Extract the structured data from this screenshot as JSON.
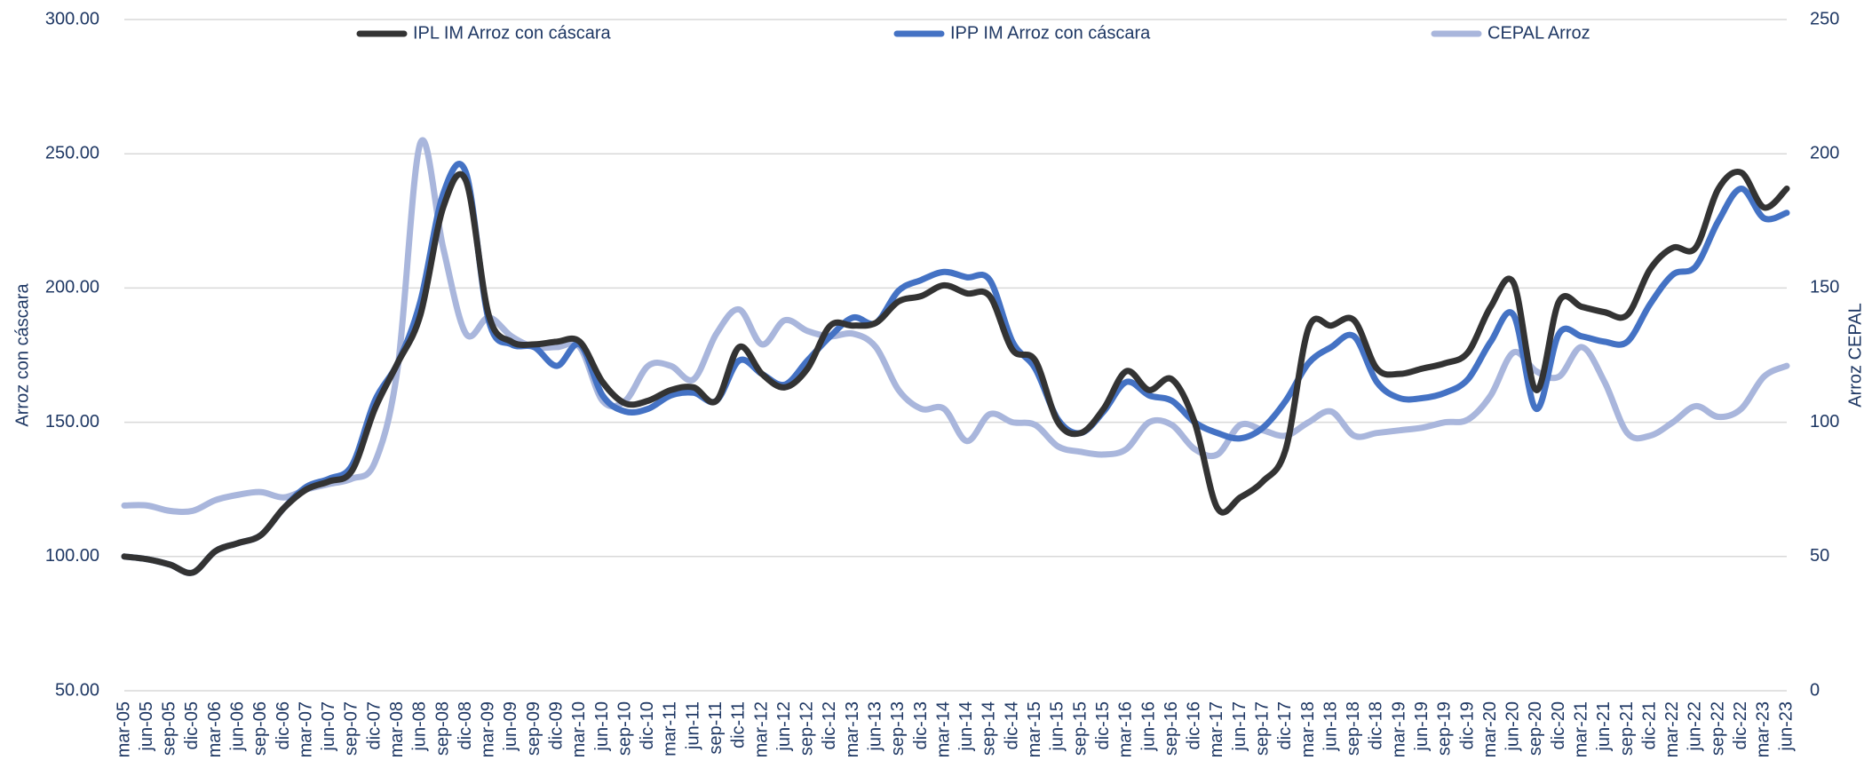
{
  "chart_data": {
    "type": "line",
    "categories": [
      "mar-05",
      "jun-05",
      "sep-05",
      "dic-05",
      "mar-06",
      "jun-06",
      "sep-06",
      "dic-06",
      "mar-07",
      "jun-07",
      "sep-07",
      "dic-07",
      "mar-08",
      "jun-08",
      "sep-08",
      "dic-08",
      "mar-09",
      "jun-09",
      "sep-09",
      "dic-09",
      "mar-10",
      "jun-10",
      "sep-10",
      "dic-10",
      "mar-11",
      "jun-11",
      "sep-11",
      "dic-11",
      "mar-12",
      "jun-12",
      "sep-12",
      "dic-12",
      "mar-13",
      "jun-13",
      "sep-13",
      "dic-13",
      "mar-14",
      "jun-14",
      "sep-14",
      "dic-14",
      "mar-15",
      "jun-15",
      "sep-15",
      "dic-15",
      "mar-16",
      "jun-16",
      "sep-16",
      "dic-16",
      "mar-17",
      "jun-17",
      "sep-17",
      "dic-17",
      "mar-18",
      "jun-18",
      "sep-18",
      "dic-18",
      "mar-19",
      "jun-19",
      "sep-19",
      "dic-19",
      "mar-20",
      "jun-20",
      "sep-20",
      "dic-20",
      "mar-21",
      "jun-21",
      "sep-21",
      "dic-21",
      "mar-22",
      "jun-22",
      "sep-22",
      "dic-22",
      "mar-23",
      "jun-23"
    ],
    "series": [
      {
        "name": "IPL IM Arroz con cáscara",
        "color": "#333333",
        "values": [
          100,
          99,
          97,
          94,
          102,
          105,
          108,
          118,
          125,
          128,
          132,
          155,
          172,
          190,
          230,
          240,
          190,
          180,
          179,
          180,
          180,
          165,
          157,
          158,
          162,
          163,
          158,
          178,
          168,
          163,
          170,
          186,
          186,
          187,
          195,
          197,
          201,
          198,
          197,
          177,
          173,
          150,
          146,
          155,
          169,
          162,
          166,
          150,
          118,
          122,
          128,
          140,
          185,
          186,
          188,
          170,
          168,
          170,
          172,
          176,
          193,
          202,
          162,
          195,
          193,
          191,
          190,
          207,
          215,
          215,
          237,
          243,
          230,
          237
        ]
      },
      {
        "name": "IPP IM Arroz con cáscara",
        "color": "#4472c4",
        "values": [
          100,
          99,
          97,
          94,
          102,
          105,
          108,
          118,
          126,
          129,
          134,
          158,
          172,
          195,
          235,
          243,
          188,
          179,
          178,
          171,
          179,
          160,
          154,
          155,
          160,
          161,
          158,
          173,
          168,
          164,
          173,
          182,
          189,
          187,
          199,
          203,
          206,
          204,
          203,
          180,
          170,
          151,
          146,
          154,
          165,
          160,
          158,
          150,
          146,
          144,
          148,
          158,
          172,
          178,
          182,
          165,
          159,
          159,
          161,
          166,
          180,
          190,
          155,
          183,
          182,
          180,
          180,
          194,
          205,
          208,
          225,
          237,
          226,
          228
        ]
      },
      {
        "name": "CEPAL Arroz",
        "color": "#a9b6dc",
        "axis": "y2",
        "values": [
          69,
          69,
          67,
          67,
          71,
          73,
          74,
          72,
          75,
          77,
          79,
          85,
          120,
          204,
          165,
          133,
          139,
          132,
          128,
          128,
          128,
          108,
          108,
          121,
          121,
          116,
          133,
          142,
          129,
          138,
          134,
          132,
          133,
          128,
          112,
          105,
          105,
          93,
          103,
          100,
          99,
          91,
          89,
          88,
          90,
          100,
          99,
          90,
          88,
          99,
          97,
          95,
          100,
          104,
          95,
          96,
          97,
          98,
          100,
          101,
          110,
          126,
          119,
          117,
          128,
          115,
          96,
          95,
          100,
          106,
          102,
          105,
          117,
          121
        ]
      }
    ],
    "ylabel": "Arroz con cáscara",
    "y2label": "Arroz CEPAL",
    "ylim": [
      50,
      300
    ],
    "yticks": [
      {
        "value": 50,
        "label": "50.00"
      },
      {
        "value": 100,
        "label": "100.00"
      },
      {
        "value": 150,
        "label": "150.00"
      },
      {
        "value": 200,
        "label": "200.00"
      },
      {
        "value": 250,
        "label": "250.00"
      },
      {
        "value": 300,
        "label": "300.00"
      }
    ],
    "y2lim": [
      0,
      250
    ],
    "y2ticks": [
      0,
      50,
      100,
      150,
      200,
      250
    ],
    "grid": true,
    "legend": "top"
  }
}
